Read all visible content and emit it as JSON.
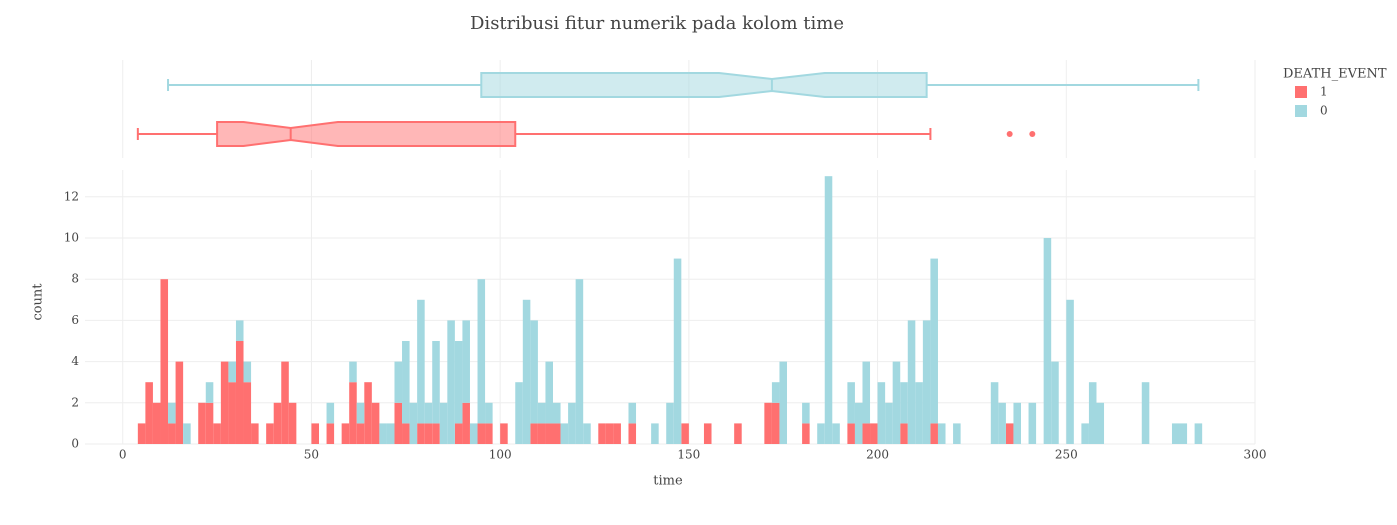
{
  "chart_data": {
    "type": "histogram",
    "title": "Distribusi fitur numerik pada kolom time",
    "x_label": "time",
    "y_label": "count",
    "legend_title": "DEATH_EVENT",
    "bins": [
      4,
      6,
      8,
      10,
      12,
      14,
      16,
      18,
      20,
      22,
      24,
      26,
      28,
      30,
      32,
      34,
      36,
      38,
      40,
      42,
      44,
      46,
      48,
      50,
      52,
      54,
      56,
      58,
      60,
      62,
      64,
      66,
      68,
      70,
      72,
      74,
      76,
      78,
      80,
      82,
      84,
      86,
      88,
      90,
      92,
      94,
      96,
      98,
      100,
      102,
      104,
      106,
      108,
      110,
      112,
      114,
      116,
      118,
      120,
      122,
      124,
      126,
      128,
      130,
      132,
      134,
      136,
      138,
      140,
      142,
      144,
      146,
      148,
      150,
      152,
      154,
      156,
      158,
      160,
      162,
      164,
      166,
      168,
      170,
      172,
      174,
      176,
      178,
      180,
      182,
      184,
      186,
      188,
      190,
      192,
      194,
      196,
      198,
      200,
      202,
      204,
      206,
      208,
      210,
      212,
      214,
      216,
      218,
      220,
      222,
      224,
      226,
      228,
      230,
      232,
      234,
      236,
      238,
      240,
      242,
      244,
      246,
      248,
      250,
      252,
      254,
      256,
      258,
      260,
      262,
      264,
      266,
      268,
      270,
      272,
      274,
      276,
      278,
      280,
      282,
      284,
      286
    ],
    "series": [
      {
        "name": "1",
        "color": "#ff7070",
        "values": [
          1,
          3,
          2,
          8,
          1,
          4,
          0,
          0,
          2,
          2,
          1,
          4,
          3,
          5,
          3,
          1,
          0,
          1,
          2,
          4,
          2,
          0,
          0,
          1,
          0,
          1,
          0,
          1,
          3,
          1,
          3,
          2,
          0,
          0,
          2,
          1,
          0,
          1,
          1,
          1,
          0,
          0,
          1,
          2,
          0,
          1,
          1,
          0,
          1,
          0,
          0,
          0,
          1,
          1,
          1,
          1,
          0,
          0,
          0,
          0,
          0,
          1,
          1,
          1,
          0,
          1,
          0,
          0,
          0,
          0,
          0,
          0,
          1,
          0,
          0,
          1,
          0,
          0,
          0,
          1,
          0,
          0,
          0,
          2,
          2,
          0,
          0,
          0,
          1,
          0,
          0,
          0,
          0,
          0,
          1,
          0,
          1,
          1,
          0,
          0,
          0,
          1,
          0,
          0,
          0,
          1,
          0,
          0,
          0,
          0,
          0,
          0,
          0,
          0,
          0,
          1,
          0,
          0,
          0,
          0,
          0,
          0,
          0,
          0,
          0,
          0,
          0,
          0,
          0,
          0,
          0,
          0,
          0,
          0,
          0,
          0,
          0,
          0,
          0,
          0,
          0
        ],
        "box": {
          "min": 4,
          "q1": 25,
          "notch_low": 32,
          "median": 44.5,
          "notch_high": 57,
          "q3": 104,
          "max": 214,
          "outliers": [
            235,
            241
          ]
        }
      },
      {
        "name": "0",
        "color": "#a2d8e0",
        "values": [
          0,
          0,
          0,
          0,
          1,
          0,
          1,
          0,
          0,
          1,
          0,
          0,
          1,
          1,
          1,
          0,
          0,
          0,
          0,
          0,
          0,
          0,
          0,
          0,
          0,
          1,
          0,
          0,
          1,
          1,
          0,
          0,
          1,
          1,
          2,
          4,
          2,
          6,
          1,
          4,
          2,
          6,
          4,
          4,
          1,
          7,
          1,
          0,
          0,
          0,
          3,
          7,
          5,
          1,
          3,
          1,
          1,
          2,
          8,
          1,
          0,
          0,
          0,
          0,
          0,
          1,
          0,
          0,
          1,
          0,
          2,
          9,
          0,
          0,
          0,
          0,
          0,
          0,
          0,
          0,
          0,
          0,
          0,
          0,
          1,
          4,
          0,
          0,
          1,
          0,
          1,
          13,
          1,
          0,
          2,
          2,
          3,
          0,
          3,
          2,
          4,
          2,
          6,
          3,
          6,
          8,
          1,
          0,
          1,
          0,
          0,
          0,
          0,
          3,
          2,
          0,
          2,
          0,
          2,
          0,
          10,
          4,
          0,
          7,
          0,
          1,
          3,
          2,
          0,
          0,
          0,
          0,
          0,
          3,
          0,
          0,
          0,
          1,
          1,
          0,
          1
        ],
        "box": {
          "min": 12,
          "q1": 95,
          "notch_low": 158,
          "median": 172,
          "notch_high": 186,
          "q3": 213,
          "max": 285,
          "outliers": []
        }
      }
    ],
    "xlim": [
      -10,
      300
    ],
    "xticks": [
      0,
      50,
      100,
      150,
      200,
      250,
      300
    ],
    "ylim": [
      0,
      13.3
    ],
    "yticks": [
      0,
      2,
      4,
      6,
      8,
      10,
      12
    ],
    "grid": true
  }
}
